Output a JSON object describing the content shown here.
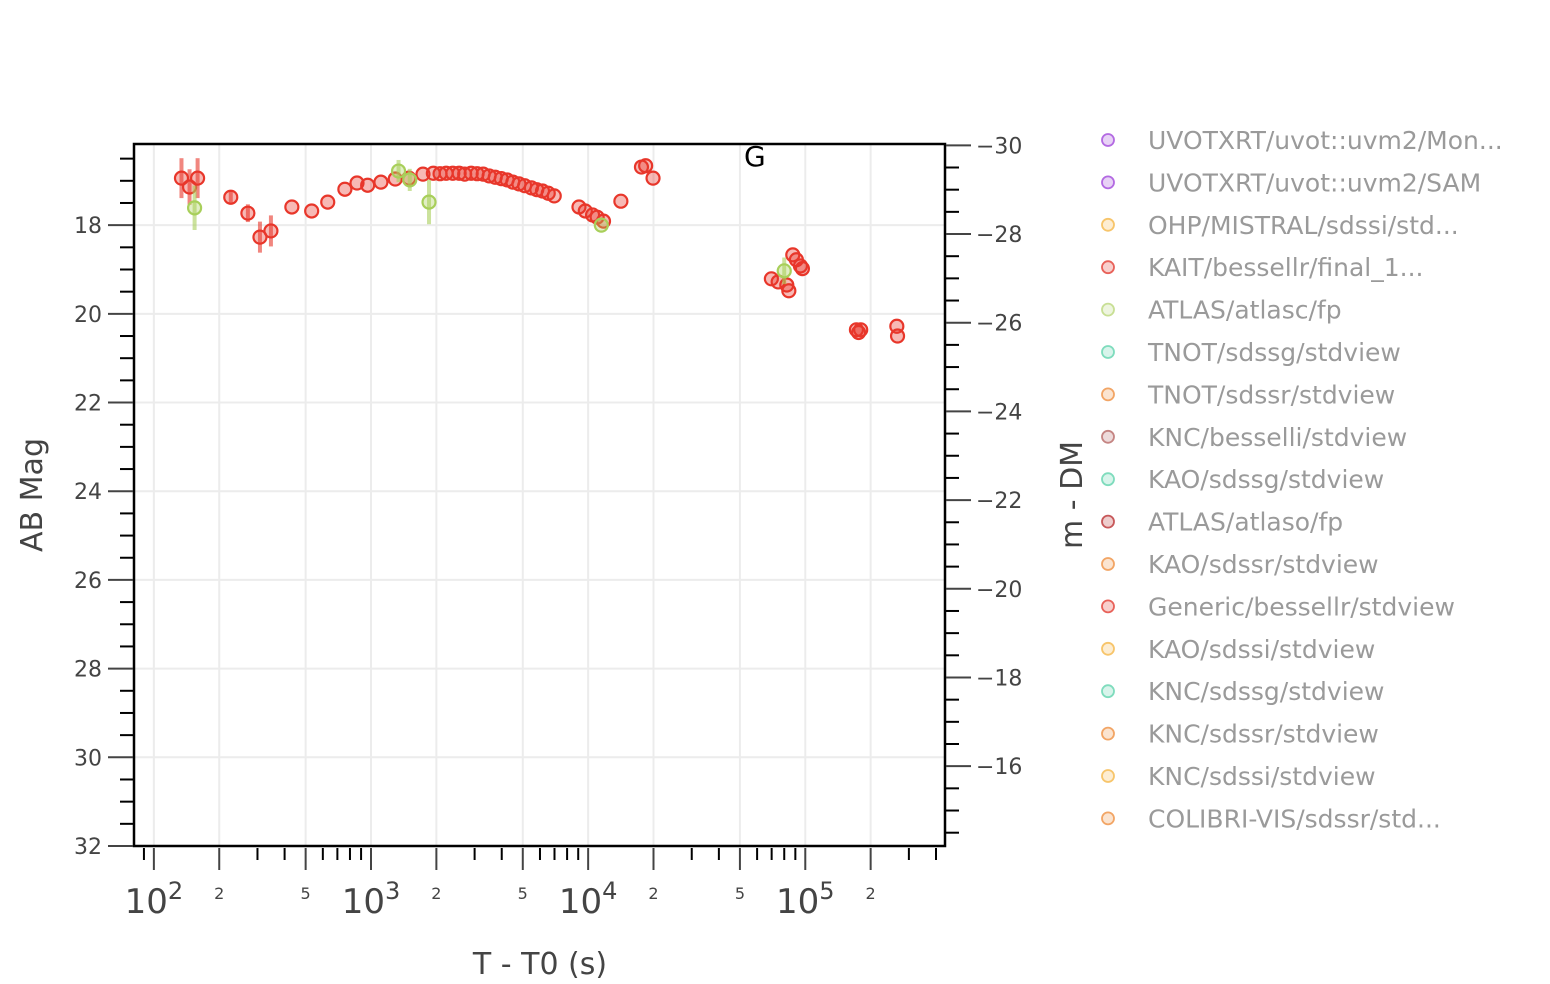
{
  "chart_data": {
    "type": "scatter",
    "title": "",
    "xlabel": "T - T0 (s)",
    "ylabel": "AB Mag",
    "y2label": "m - DM",
    "xscale": "log",
    "xlim": [
      81,
      440000
    ],
    "ylim": [
      32,
      16.17
    ],
    "y2lim": [
      -14.2,
      -30.03
    ],
    "grid": true,
    "annotation": "G",
    "x_major_ticks": [
      {
        "value": 100,
        "base": "10",
        "exp": "2"
      },
      {
        "value": 1000,
        "base": "10",
        "exp": "3"
      },
      {
        "value": 10000,
        "base": "10",
        "exp": "4"
      },
      {
        "value": 100000,
        "base": "10",
        "exp": "5"
      }
    ],
    "x_minor_labels": [
      {
        "value": 200,
        "label": "2"
      },
      {
        "value": 500,
        "label": "5"
      },
      {
        "value": 2000,
        "label": "2"
      },
      {
        "value": 5000,
        "label": "5"
      },
      {
        "value": 20000,
        "label": "2"
      },
      {
        "value": 50000,
        "label": "5"
      },
      {
        "value": 200000,
        "label": "2"
      }
    ],
    "y_ticks": [
      "18",
      "20",
      "22",
      "24",
      "26",
      "28",
      "30",
      "32"
    ],
    "y2_ticks": [
      "−30",
      "−28",
      "−26",
      "−24",
      "−22",
      "−20",
      "−18",
      "−16"
    ],
    "series": [
      {
        "name": "Generic/bessellr/stdview",
        "color": "#e8362a",
        "points": [
          {
            "x": 134,
            "y": 16.94,
            "err": 0.45
          },
          {
            "x": 146,
            "y": 17.14,
            "err": 0.4
          },
          {
            "x": 159,
            "y": 16.94,
            "err": 0.45
          },
          {
            "x": 226,
            "y": 17.37,
            "err": 0.15
          },
          {
            "x": 271,
            "y": 17.73,
            "err": 0.2
          },
          {
            "x": 308,
            "y": 18.27,
            "err": 0.35
          },
          {
            "x": 346,
            "y": 18.13,
            "err": 0.35
          },
          {
            "x": 432,
            "y": 17.59
          },
          {
            "x": 533,
            "y": 17.68
          },
          {
            "x": 632,
            "y": 17.48
          },
          {
            "x": 758,
            "y": 17.19
          },
          {
            "x": 862,
            "y": 17.05
          },
          {
            "x": 965,
            "y": 17.1
          },
          {
            "x": 1111,
            "y": 17.03
          },
          {
            "x": 1293,
            "y": 16.96
          },
          {
            "x": 1495,
            "y": 16.94
          },
          {
            "x": 1735,
            "y": 16.85
          },
          {
            "x": 1937,
            "y": 16.83
          },
          {
            "x": 2080,
            "y": 16.84
          },
          {
            "x": 2218,
            "y": 16.83
          },
          {
            "x": 2380,
            "y": 16.83
          },
          {
            "x": 2546,
            "y": 16.83
          },
          {
            "x": 2700,
            "y": 16.85
          },
          {
            "x": 2893,
            "y": 16.83
          },
          {
            "x": 3080,
            "y": 16.84
          },
          {
            "x": 3286,
            "y": 16.85
          },
          {
            "x": 3500,
            "y": 16.89
          },
          {
            "x": 3733,
            "y": 16.92
          },
          {
            "x": 3980,
            "y": 16.95
          },
          {
            "x": 4236,
            "y": 16.98
          },
          {
            "x": 4500,
            "y": 17.03
          },
          {
            "x": 4800,
            "y": 17.07
          },
          {
            "x": 5100,
            "y": 17.11
          },
          {
            "x": 5478,
            "y": 17.16
          },
          {
            "x": 5800,
            "y": 17.2
          },
          {
            "x": 6163,
            "y": 17.23
          },
          {
            "x": 6550,
            "y": 17.28
          },
          {
            "x": 6979,
            "y": 17.34
          },
          {
            "x": 9074,
            "y": 17.59
          },
          {
            "x": 9700,
            "y": 17.68
          },
          {
            "x": 10480,
            "y": 17.77
          },
          {
            "x": 11000,
            "y": 17.82
          },
          {
            "x": 11770,
            "y": 17.91
          },
          {
            "x": 14150,
            "y": 17.46
          },
          {
            "x": 17600,
            "y": 16.69
          },
          {
            "x": 18400,
            "y": 16.66
          },
          {
            "x": 19900,
            "y": 16.94
          },
          {
            "x": 69800,
            "y": 19.21
          },
          {
            "x": 75000,
            "y": 19.28
          },
          {
            "x": 82200,
            "y": 19.35
          },
          {
            "x": 84000,
            "y": 19.48
          },
          {
            "x": 87600,
            "y": 18.67
          },
          {
            "x": 91000,
            "y": 18.78
          },
          {
            "x": 95000,
            "y": 18.92
          },
          {
            "x": 97000,
            "y": 18.98
          },
          {
            "x": 172000,
            "y": 20.36
          },
          {
            "x": 176000,
            "y": 20.42
          },
          {
            "x": 180000,
            "y": 20.36
          },
          {
            "x": 264000,
            "y": 20.28
          },
          {
            "x": 266000,
            "y": 20.5
          }
        ]
      },
      {
        "name": "ATLAS/atlasc/fp",
        "color": "#a8cf5a",
        "points": [
          {
            "x": 154,
            "y": 17.61,
            "err": 0.5
          },
          {
            "x": 1339,
            "y": 16.78,
            "err": 0.25
          },
          {
            "x": 1508,
            "y": 16.98,
            "err": 0.25
          },
          {
            "x": 1850,
            "y": 17.48,
            "err": 0.5
          },
          {
            "x": 11500,
            "y": 18.0
          },
          {
            "x": 80000,
            "y": 19.03,
            "err": 0.3
          }
        ]
      }
    ],
    "legend": {
      "placement": "right",
      "entries": [
        {
          "label": "UVOTXRT/uvot::uvm2/Mon...",
          "color": "#b36ae2"
        },
        {
          "label": "UVOTXRT/uvot::uvm2/SAM",
          "color": "#b36ae2"
        },
        {
          "label": "OHP/MISTRAL/sdssi/std...",
          "color": "#f7c56b"
        },
        {
          "label": "KAIT/bessellr/final_1...",
          "color": "#e8625a"
        },
        {
          "label": "ATLAS/atlasc/fp",
          "color": "#c8df95"
        },
        {
          "label": "TNOT/sdssg/stdview",
          "color": "#7fdcbd"
        },
        {
          "label": "TNOT/sdssr/stdview",
          "color": "#f2a565"
        },
        {
          "label": "KNC/besselli/stdview",
          "color": "#c58583"
        },
        {
          "label": "KAO/sdssg/stdview",
          "color": "#7fdcbd"
        },
        {
          "label": "ATLAS/atlaso/fp",
          "color": "#c7585a"
        },
        {
          "label": "KAO/sdssr/stdview",
          "color": "#f2a565"
        },
        {
          "label": "Generic/bessellr/stdview",
          "color": "#e8625a"
        },
        {
          "label": "KAO/sdssi/stdview",
          "color": "#f7c56b"
        },
        {
          "label": "KNC/sdssg/stdview",
          "color": "#7fdcbd"
        },
        {
          "label": "KNC/sdssr/stdview",
          "color": "#f2a565"
        },
        {
          "label": "KNC/sdssi/stdview",
          "color": "#f7c56b"
        },
        {
          "label": "COLIBRI-VIS/sdssr/std...",
          "color": "#f2a565"
        }
      ]
    }
  }
}
